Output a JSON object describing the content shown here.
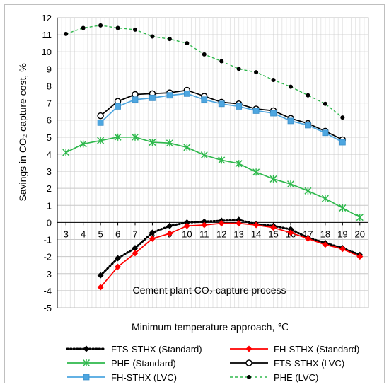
{
  "chart_data": {
    "type": "line",
    "xlabel": "Minimum temperature  approach, ℃",
    "ylabel": "Savings in CO₂ capture cost, %",
    "annotation": "Cement plant CO₂ capture process",
    "xlim": [
      2.5,
      20.5
    ],
    "ylim": [
      -5,
      12
    ],
    "x_ticks": [
      3,
      4,
      5,
      6,
      7,
      8,
      9,
      10,
      11,
      12,
      13,
      14,
      15,
      16,
      17,
      18,
      19,
      20
    ],
    "y_ticks": [
      -5,
      -4,
      -3,
      -2,
      -1,
      0,
      1,
      2,
      3,
      4,
      5,
      6,
      7,
      8,
      9,
      10,
      11,
      12
    ],
    "grid": true,
    "legend_position": "bottom",
    "series": [
      {
        "name": "FTS-STHX (Standard)",
        "color": "#000000",
        "style": "dotted-diamond",
        "x": [
          5,
          6,
          7,
          8,
          9,
          10,
          11,
          12,
          13,
          14,
          15,
          16,
          17,
          18,
          19,
          20
        ],
        "y": [
          -3.1,
          -2.1,
          -1.5,
          -0.6,
          -0.2,
          0.0,
          0.05,
          0.1,
          0.15,
          -0.1,
          -0.2,
          -0.4,
          -0.9,
          -1.2,
          -1.5,
          -1.9
        ]
      },
      {
        "name": "FH-STHX (Standard)",
        "color": "#ff0000",
        "style": "solid-diamond",
        "x": [
          5,
          6,
          7,
          8,
          9,
          10,
          11,
          12,
          13,
          14,
          15,
          16,
          17,
          18,
          19,
          20
        ],
        "y": [
          -3.8,
          -2.6,
          -1.8,
          -0.95,
          -0.65,
          -0.2,
          -0.15,
          -0.05,
          -0.05,
          -0.15,
          -0.3,
          -0.6,
          -0.95,
          -1.3,
          -1.55,
          -2.0
        ]
      },
      {
        "name": "PHE (Standard)",
        "color": "#2eb84c",
        "style": "solid-star",
        "x": [
          3,
          4,
          5,
          6,
          7,
          8,
          9,
          10,
          11,
          12,
          13,
          14,
          15,
          16,
          17,
          18,
          19,
          20
        ],
        "y": [
          4.1,
          4.6,
          4.8,
          5.0,
          5.0,
          4.7,
          4.65,
          4.4,
          3.95,
          3.65,
          3.45,
          2.95,
          2.55,
          2.25,
          1.85,
          1.4,
          0.85,
          0.3
        ]
      },
      {
        "name": "FTS-STHX (LVC)",
        "color": "#000000",
        "style": "solid-open-circle",
        "x": [
          5,
          6,
          7,
          8,
          9,
          10,
          11,
          12,
          13,
          14,
          15,
          16,
          17,
          18,
          19
        ],
        "y": [
          6.25,
          7.1,
          7.5,
          7.55,
          7.6,
          7.75,
          7.4,
          7.05,
          6.95,
          6.65,
          6.55,
          6.1,
          5.8,
          5.35,
          4.85
        ]
      },
      {
        "name": "FH-STHX (LVC)",
        "color": "#4da6e0",
        "style": "solid-square",
        "x": [
          5,
          6,
          7,
          8,
          9,
          10,
          11,
          12,
          13,
          14,
          15,
          16,
          17,
          18,
          19
        ],
        "y": [
          5.85,
          6.8,
          7.2,
          7.3,
          7.45,
          7.55,
          7.2,
          6.95,
          6.8,
          6.55,
          6.4,
          5.95,
          5.7,
          5.25,
          4.7
        ]
      },
      {
        "name": "PHE (LVC)",
        "color": "#2eb84c",
        "marker_color": "#000000",
        "style": "dashed-dot",
        "x": [
          3,
          4,
          5,
          6,
          7,
          8,
          9,
          10,
          11,
          12,
          13,
          14,
          15,
          16,
          17,
          18,
          19
        ],
        "y": [
          11.05,
          11.4,
          11.55,
          11.4,
          11.3,
          10.9,
          10.75,
          10.5,
          9.85,
          9.45,
          9.0,
          8.8,
          8.35,
          7.95,
          7.45,
          6.95,
          6.15
        ]
      }
    ]
  }
}
